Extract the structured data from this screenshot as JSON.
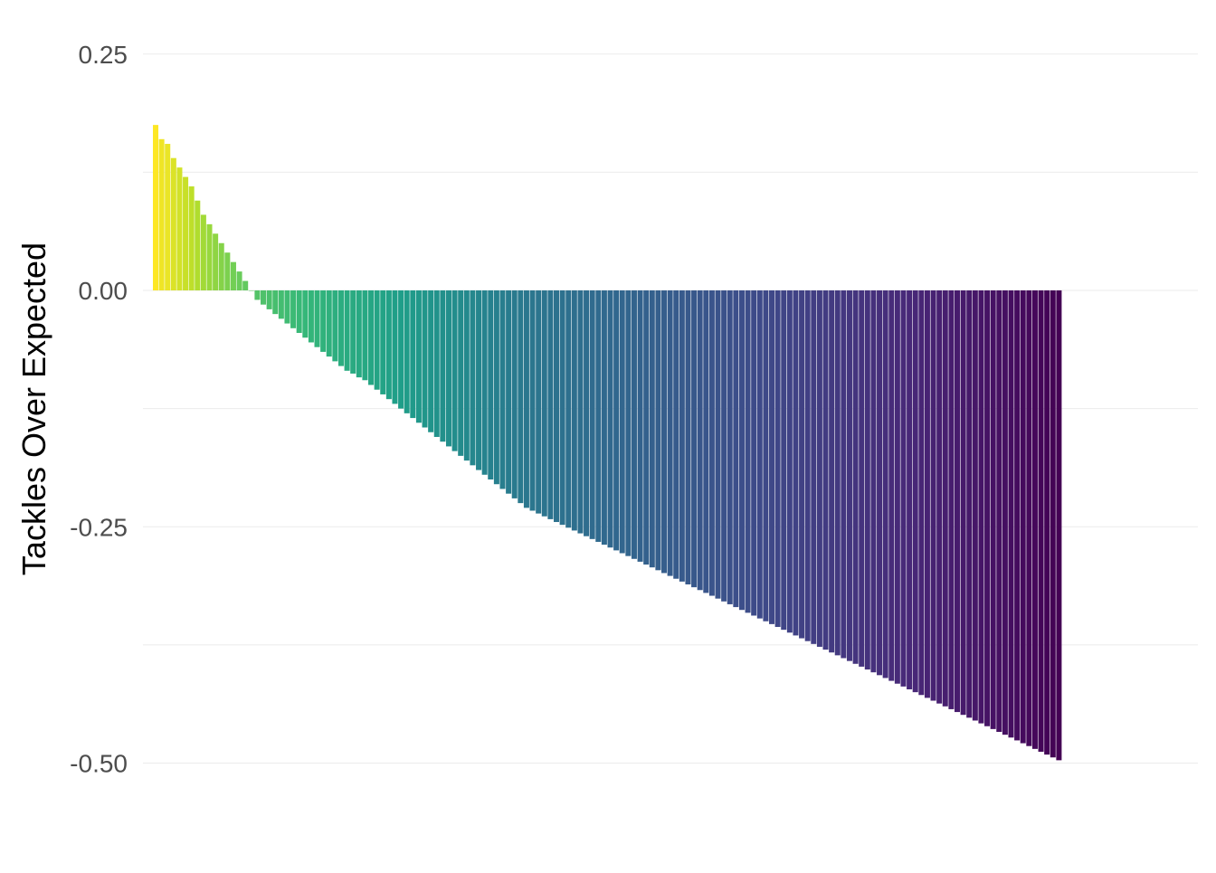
{
  "chart_data": {
    "type": "bar",
    "title": "",
    "xlabel": "",
    "ylabel": "Tackles Over Expected",
    "ylim": [
      -0.55,
      0.27
    ],
    "yticks": [
      0.25,
      0.0,
      -0.25,
      -0.5
    ],
    "ytick_labels": [
      "0.25",
      "0.00",
      "-0.25",
      "-0.50"
    ],
    "grid": "horizontal",
    "legend": "none",
    "sorted": "descending",
    "color_scale": "viridis",
    "color_scale_stops": [
      "#440154",
      "#482878",
      "#3e4a89",
      "#31688e",
      "#26828e",
      "#1f9e89",
      "#35b779",
      "#6ece58",
      "#b5de2b",
      "#fde725"
    ],
    "series": [
      {
        "values": [
          0.175,
          0.16,
          0.155,
          0.14,
          0.13,
          0.12,
          0.11,
          0.095,
          0.08,
          0.07,
          0.06,
          0.05,
          0.04,
          0.03,
          0.02,
          0.01,
          0.0,
          -0.01,
          -0.015,
          -0.02,
          -0.025,
          -0.03,
          -0.035,
          -0.04,
          -0.045,
          -0.05,
          -0.055,
          -0.06,
          -0.065,
          -0.07,
          -0.075,
          -0.08,
          -0.085,
          -0.088,
          -0.092,
          -0.095,
          -0.1,
          -0.105,
          -0.11,
          -0.115,
          -0.12,
          -0.125,
          -0.13,
          -0.135,
          -0.14,
          -0.145,
          -0.15,
          -0.155,
          -0.16,
          -0.165,
          -0.17,
          -0.175,
          -0.18,
          -0.185,
          -0.19,
          -0.195,
          -0.2,
          -0.205,
          -0.21,
          -0.215,
          -0.22,
          -0.225,
          -0.23,
          -0.233,
          -0.236,
          -0.239,
          -0.242,
          -0.245,
          -0.248,
          -0.251,
          -0.254,
          -0.257,
          -0.26,
          -0.263,
          -0.266,
          -0.269,
          -0.272,
          -0.275,
          -0.278,
          -0.281,
          -0.284,
          -0.287,
          -0.29,
          -0.293,
          -0.296,
          -0.299,
          -0.302,
          -0.305,
          -0.308,
          -0.311,
          -0.314,
          -0.317,
          -0.32,
          -0.323,
          -0.326,
          -0.329,
          -0.332,
          -0.335,
          -0.338,
          -0.341,
          -0.344,
          -0.347,
          -0.35,
          -0.353,
          -0.356,
          -0.359,
          -0.362,
          -0.365,
          -0.368,
          -0.371,
          -0.374,
          -0.377,
          -0.38,
          -0.383,
          -0.386,
          -0.389,
          -0.392,
          -0.395,
          -0.398,
          -0.401,
          -0.404,
          -0.407,
          -0.41,
          -0.413,
          -0.416,
          -0.419,
          -0.422,
          -0.425,
          -0.428,
          -0.431,
          -0.434,
          -0.437,
          -0.44,
          -0.443,
          -0.446,
          -0.449,
          -0.452,
          -0.455,
          -0.458,
          -0.461,
          -0.464,
          -0.467,
          -0.47,
          -0.473,
          -0.476,
          -0.479,
          -0.482,
          -0.485,
          -0.488,
          -0.491,
          -0.494,
          -0.497
        ]
      }
    ]
  }
}
